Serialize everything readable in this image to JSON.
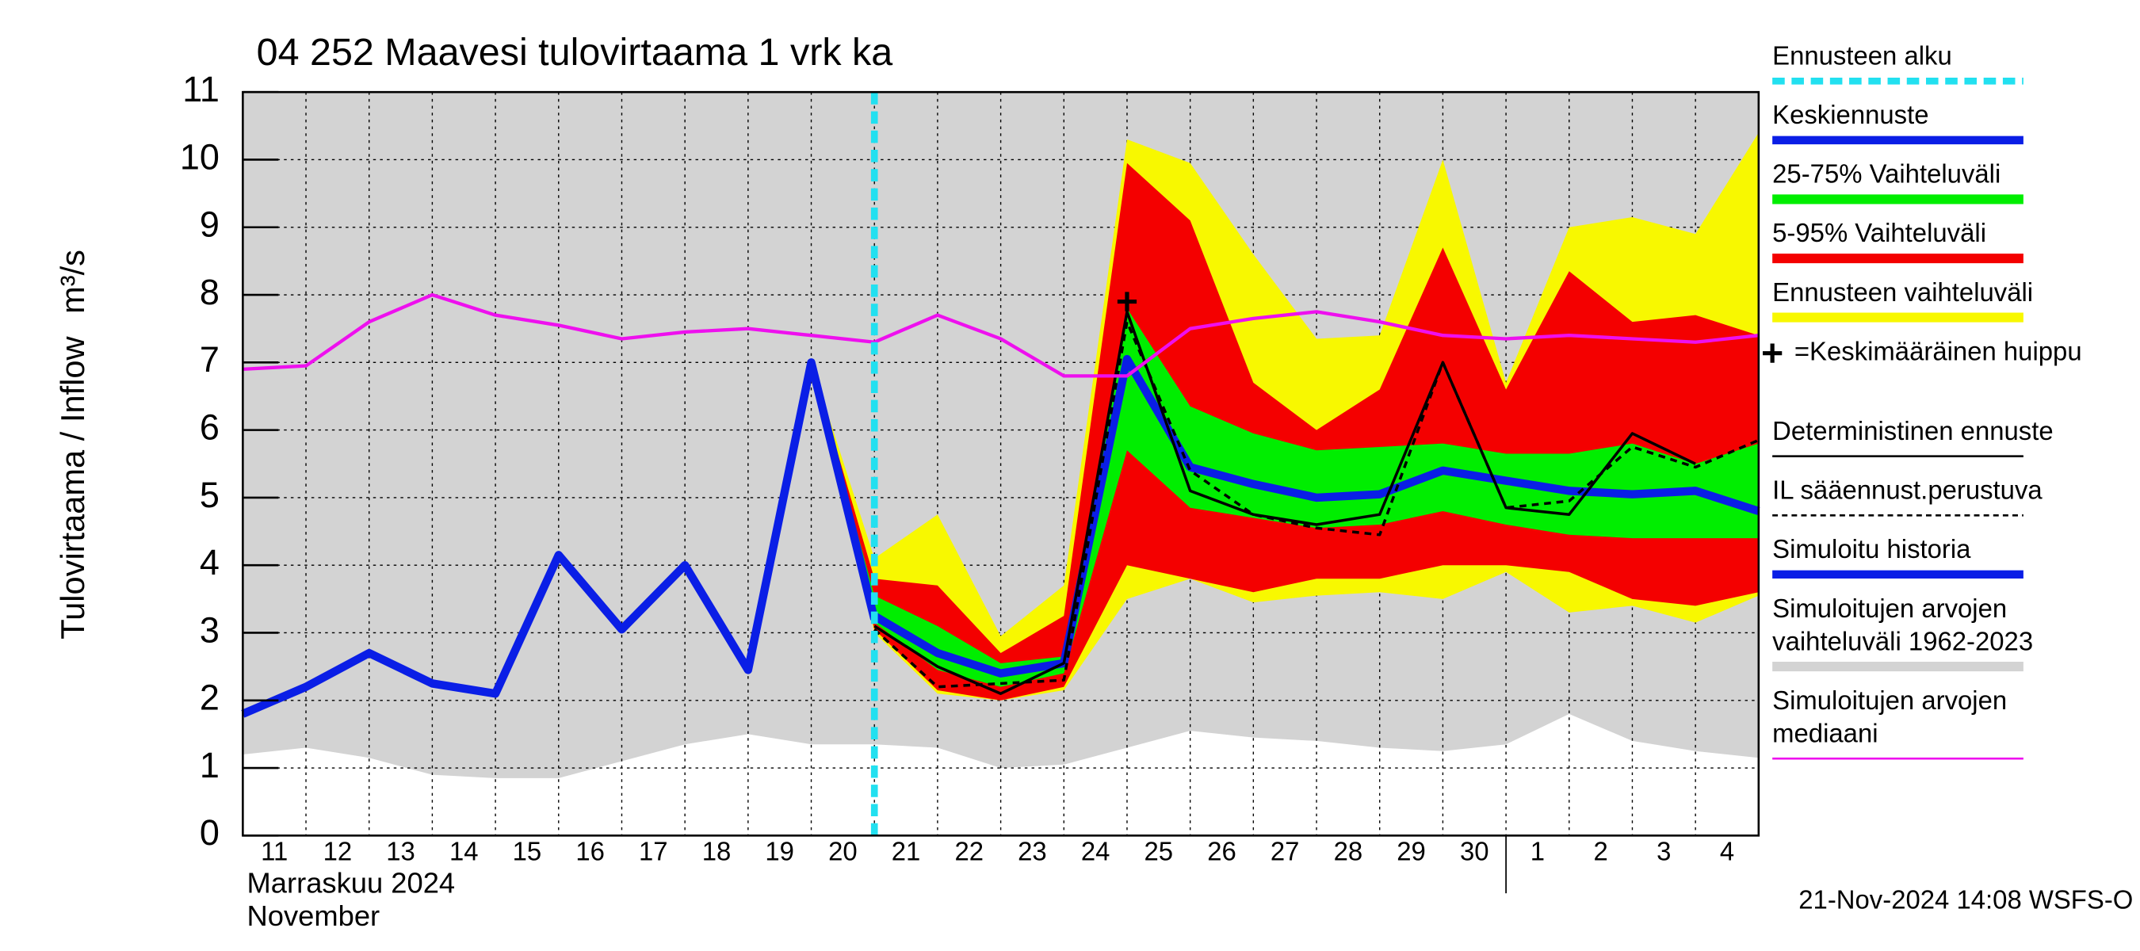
{
  "chart_data": {
    "type": "line",
    "title": "04 252 Maavesi tulovirtaama 1 vrk ka",
    "y_label": "Tulovirtaama / Inflow",
    "y_unit": "m³/s",
    "x_caption": [
      "Marraskuu 2024",
      "November"
    ],
    "footer": "21-Nov-2024 14:08 WSFS-O",
    "x": [
      0,
      1,
      2,
      3,
      4,
      5,
      6,
      7,
      8,
      9,
      10,
      11,
      12,
      13,
      14,
      15,
      16,
      17,
      18,
      19,
      20,
      21,
      22,
      23,
      24
    ],
    "xlim": [
      0,
      24
    ],
    "xticks": [
      {
        "value": 0.5,
        "label": "11"
      },
      {
        "value": 1.5,
        "label": "12"
      },
      {
        "value": 2.5,
        "label": "13"
      },
      {
        "value": 3.5,
        "label": "14"
      },
      {
        "value": 4.5,
        "label": "15"
      },
      {
        "value": 5.5,
        "label": "16"
      },
      {
        "value": 6.5,
        "label": "17"
      },
      {
        "value": 7.5,
        "label": "18"
      },
      {
        "value": 8.5,
        "label": "19"
      },
      {
        "value": 9.5,
        "label": "20"
      },
      {
        "value": 10.5,
        "label": "21"
      },
      {
        "value": 11.5,
        "label": "22"
      },
      {
        "value": 12.5,
        "label": "23"
      },
      {
        "value": 13.5,
        "label": "24"
      },
      {
        "value": 14.5,
        "label": "25"
      },
      {
        "value": 15.5,
        "label": "26"
      },
      {
        "value": 16.5,
        "label": "27"
      },
      {
        "value": 17.5,
        "label": "28"
      },
      {
        "value": 18.5,
        "label": "29"
      },
      {
        "value": 19.5,
        "label": "30"
      },
      {
        "value": 20.5,
        "label": "1"
      },
      {
        "value": 21.5,
        "label": "2"
      },
      {
        "value": 22.5,
        "label": "3"
      },
      {
        "value": 23.5,
        "label": "4"
      }
    ],
    "ylim": [
      0,
      11
    ],
    "yticks": [
      0,
      1,
      2,
      3,
      4,
      5,
      6,
      7,
      8,
      9,
      10,
      11
    ],
    "grid": true,
    "series": [
      {
        "name": "Ennusteen alku",
        "type": "vline",
        "color": "#22e0f0",
        "x": 10
      },
      {
        "name": "Keskiennuste",
        "type": "line",
        "color": "#0a1ee6",
        "width": 6,
        "values": [
          null,
          null,
          null,
          null,
          null,
          null,
          null,
          null,
          null,
          null,
          3.25,
          2.7,
          2.4,
          2.55,
          7.05,
          5.45,
          5.2,
          5.0,
          5.05,
          5.4,
          5.25,
          5.1,
          5.05,
          5.1,
          4.8
        ]
      },
      {
        "name": "25-75% Vaihteluväli",
        "type": "band",
        "color": "#00ee00",
        "upper": [
          null,
          null,
          null,
          null,
          null,
          null,
          null,
          null,
          null,
          7.0,
          3.55,
          3.1,
          2.55,
          2.65,
          7.8,
          6.35,
          5.95,
          5.7,
          5.75,
          5.8,
          5.65,
          5.65,
          5.8,
          5.5,
          5.8
        ],
        "lower": [
          null,
          null,
          null,
          null,
          null,
          null,
          null,
          null,
          null,
          7.0,
          3.15,
          2.45,
          2.2,
          2.4,
          5.7,
          4.85,
          4.7,
          4.55,
          4.6,
          4.8,
          4.6,
          4.45,
          4.4,
          4.4,
          4.4
        ]
      },
      {
        "name": "5-95% Vaihteluväli",
        "type": "band",
        "color": "#f40000",
        "upper": [
          null,
          null,
          null,
          null,
          null,
          null,
          null,
          null,
          null,
          7.0,
          3.8,
          3.7,
          2.7,
          3.25,
          9.95,
          9.1,
          6.7,
          6.0,
          6.6,
          8.7,
          6.6,
          8.35,
          7.6,
          7.7,
          7.4
        ],
        "lower": [
          null,
          null,
          null,
          null,
          null,
          null,
          null,
          null,
          null,
          7.0,
          3.05,
          2.15,
          2.0,
          2.2,
          4.0,
          3.8,
          3.6,
          3.8,
          3.8,
          4.0,
          4.0,
          3.9,
          3.5,
          3.4,
          3.6
        ]
      },
      {
        "name": "Ennusteen vaihteluväli",
        "type": "band",
        "color": "#f8f800",
        "upper": [
          null,
          null,
          null,
          null,
          null,
          null,
          null,
          null,
          null,
          7.0,
          4.1,
          4.75,
          2.95,
          3.7,
          10.3,
          9.95,
          8.6,
          7.35,
          7.4,
          10.0,
          6.7,
          9.0,
          9.15,
          8.9,
          10.4
        ],
        "lower": [
          null,
          null,
          null,
          null,
          null,
          null,
          null,
          null,
          null,
          7.0,
          3.0,
          2.1,
          2.0,
          2.15,
          3.5,
          3.8,
          3.45,
          3.55,
          3.6,
          3.5,
          3.9,
          3.3,
          3.4,
          3.15,
          3.55
        ]
      },
      {
        "name": "=Keskimääräinen huippu",
        "type": "marker",
        "color": "#000000",
        "x": 14,
        "y": 7.9
      },
      {
        "name": "Deterministinen ennuste",
        "type": "line",
        "color": "#000000",
        "width": 2,
        "values": [
          null,
          null,
          null,
          null,
          null,
          null,
          null,
          null,
          null,
          null,
          3.1,
          2.5,
          2.1,
          2.55,
          7.75,
          5.1,
          4.75,
          4.6,
          4.75,
          7.0,
          4.85,
          4.75,
          5.95,
          5.5,
          null
        ]
      },
      {
        "name": "IL sääennust.perustuva",
        "type": "line",
        "color": "#000000",
        "width": 2,
        "dashed": true,
        "values": [
          null,
          null,
          null,
          null,
          null,
          null,
          null,
          null,
          null,
          null,
          3.05,
          2.2,
          2.25,
          2.3,
          7.6,
          5.4,
          4.75,
          4.55,
          4.45,
          7.0,
          4.85,
          4.95,
          5.75,
          5.45,
          5.85
        ]
      },
      {
        "name": "Simuloitu historia",
        "type": "line",
        "color": "#0a1ee6",
        "width": 6,
        "values": [
          1.8,
          2.2,
          2.7,
          2.25,
          2.1,
          4.15,
          3.05,
          4.0,
          2.45,
          7.0,
          3.2,
          null,
          null,
          null,
          null,
          null,
          null,
          null,
          null,
          null,
          null,
          null,
          null,
          null,
          null
        ]
      },
      {
        "name": "Simuloitujen arvojen vaihteluväli 1962-2023",
        "type": "band",
        "color": "#d3d3d3",
        "upper": [
          11,
          11,
          11,
          11,
          11,
          11,
          11,
          11,
          11,
          11,
          11,
          11,
          11,
          11,
          11,
          11,
          11,
          11,
          11,
          11,
          11,
          11,
          11,
          11,
          11
        ],
        "lower": [
          1.2,
          1.3,
          1.15,
          0.9,
          0.85,
          0.85,
          1.1,
          1.35,
          1.5,
          1.35,
          1.35,
          1.3,
          1.0,
          1.05,
          1.3,
          1.55,
          1.45,
          1.4,
          1.3,
          1.25,
          1.35,
          1.8,
          1.4,
          1.25,
          1.15
        ]
      },
      {
        "name": "Simuloitujen arvojen mediaani",
        "type": "line",
        "color": "#ee10ee",
        "width": 2.5,
        "values": [
          6.9,
          6.95,
          7.6,
          8.0,
          7.7,
          7.55,
          7.35,
          7.45,
          7.5,
          7.4,
          7.3,
          7.7,
          7.35,
          6.8,
          6.8,
          7.5,
          7.65,
          7.75,
          7.6,
          7.4,
          7.35,
          7.4,
          7.35,
          7.3,
          7.4
        ]
      }
    ]
  }
}
